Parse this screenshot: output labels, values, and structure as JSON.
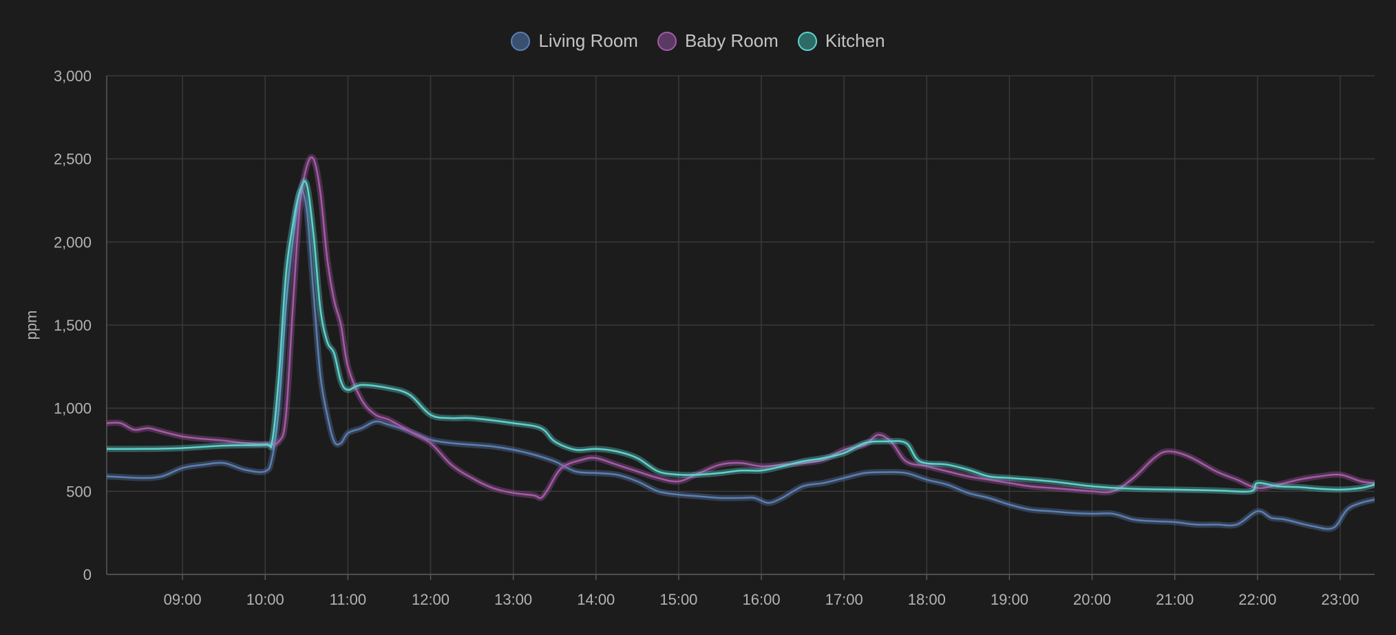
{
  "chart_data": {
    "type": "line",
    "title": "",
    "xlabel": "",
    "ylabel": "ppm",
    "xlim": [
      "08:05",
      "23:25"
    ],
    "ylim": [
      0,
      3000
    ],
    "y_ticks": [
      0,
      500,
      1000,
      1500,
      2000,
      2500,
      3000
    ],
    "y_tick_labels": [
      "0",
      "500",
      "1,000",
      "1,500",
      "2,000",
      "2,500",
      "3,000"
    ],
    "x_ticks": [
      "09:00",
      "10:00",
      "11:00",
      "12:00",
      "13:00",
      "14:00",
      "15:00",
      "16:00",
      "17:00",
      "18:00",
      "19:00",
      "20:00",
      "21:00",
      "22:00",
      "23:00"
    ],
    "grid": true,
    "legend_position": "top-center",
    "series": [
      {
        "name": "Living Room",
        "color": "#5b7fb3",
        "fill": "#3a5070",
        "points": [
          [
            "08:05",
            590
          ],
          [
            "08:30",
            580
          ],
          [
            "08:45",
            590
          ],
          [
            "09:00",
            640
          ],
          [
            "09:15",
            660
          ],
          [
            "09:30",
            670
          ],
          [
            "09:45",
            630
          ],
          [
            "10:00",
            620
          ],
          [
            "10:05",
            700
          ],
          [
            "10:10",
            1000
          ],
          [
            "10:15",
            1600
          ],
          [
            "10:20",
            2000
          ],
          [
            "10:25",
            2300
          ],
          [
            "10:30",
            2200
          ],
          [
            "10:35",
            1700
          ],
          [
            "10:40",
            1200
          ],
          [
            "10:45",
            960
          ],
          [
            "10:50",
            800
          ],
          [
            "10:55",
            790
          ],
          [
            "11:00",
            850
          ],
          [
            "11:10",
            880
          ],
          [
            "11:20",
            920
          ],
          [
            "11:30",
            900
          ],
          [
            "11:45",
            860
          ],
          [
            "12:00",
            810
          ],
          [
            "12:15",
            790
          ],
          [
            "12:30",
            780
          ],
          [
            "12:45",
            770
          ],
          [
            "13:00",
            750
          ],
          [
            "13:15",
            720
          ],
          [
            "13:30",
            680
          ],
          [
            "13:45",
            620
          ],
          [
            "14:00",
            610
          ],
          [
            "14:15",
            600
          ],
          [
            "14:30",
            560
          ],
          [
            "14:45",
            500
          ],
          [
            "15:00",
            480
          ],
          [
            "15:15",
            470
          ],
          [
            "15:30",
            460
          ],
          [
            "15:45",
            460
          ],
          [
            "15:55",
            460
          ],
          [
            "16:05",
            430
          ],
          [
            "16:15",
            460
          ],
          [
            "16:30",
            530
          ],
          [
            "16:45",
            550
          ],
          [
            "17:00",
            580
          ],
          [
            "17:15",
            610
          ],
          [
            "17:30",
            615
          ],
          [
            "17:45",
            610
          ],
          [
            "18:00",
            570
          ],
          [
            "18:15",
            540
          ],
          [
            "18:30",
            490
          ],
          [
            "18:45",
            460
          ],
          [
            "19:00",
            420
          ],
          [
            "19:15",
            390
          ],
          [
            "19:30",
            380
          ],
          [
            "19:45",
            370
          ],
          [
            "20:00",
            365
          ],
          [
            "20:15",
            365
          ],
          [
            "20:30",
            330
          ],
          [
            "20:45",
            320
          ],
          [
            "21:00",
            315
          ],
          [
            "21:15",
            300
          ],
          [
            "21:30",
            300
          ],
          [
            "21:45",
            300
          ],
          [
            "22:00",
            380
          ],
          [
            "22:10",
            340
          ],
          [
            "22:20",
            330
          ],
          [
            "22:40",
            290
          ],
          [
            "22:55",
            280
          ],
          [
            "23:05",
            390
          ],
          [
            "23:15",
            430
          ],
          [
            "23:25",
            450
          ]
        ]
      },
      {
        "name": "Baby Room",
        "color": "#a65aa8",
        "fill": "#5a3a62",
        "points": [
          [
            "08:05",
            910
          ],
          [
            "08:15",
            910
          ],
          [
            "08:25",
            870
          ],
          [
            "08:35",
            880
          ],
          [
            "08:45",
            860
          ],
          [
            "09:00",
            830
          ],
          [
            "09:15",
            815
          ],
          [
            "09:30",
            805
          ],
          [
            "09:45",
            790
          ],
          [
            "10:00",
            785
          ],
          [
            "10:10",
            800
          ],
          [
            "10:15",
            950
          ],
          [
            "10:20",
            1600
          ],
          [
            "10:25",
            2200
          ],
          [
            "10:30",
            2450
          ],
          [
            "10:35",
            2500
          ],
          [
            "10:40",
            2300
          ],
          [
            "10:45",
            1900
          ],
          [
            "10:50",
            1650
          ],
          [
            "10:55",
            1500
          ],
          [
            "11:00",
            1250
          ],
          [
            "11:10",
            1050
          ],
          [
            "11:20",
            960
          ],
          [
            "11:30",
            930
          ],
          [
            "11:45",
            860
          ],
          [
            "12:00",
            790
          ],
          [
            "12:15",
            660
          ],
          [
            "12:30",
            580
          ],
          [
            "12:45",
            520
          ],
          [
            "13:00",
            490
          ],
          [
            "13:15",
            475
          ],
          [
            "13:20",
            460
          ],
          [
            "13:25",
            510
          ],
          [
            "13:35",
            640
          ],
          [
            "13:50",
            690
          ],
          [
            "14:00",
            700
          ],
          [
            "14:15",
            660
          ],
          [
            "14:30",
            620
          ],
          [
            "14:45",
            580
          ],
          [
            "15:00",
            560
          ],
          [
            "15:15",
            610
          ],
          [
            "15:30",
            660
          ],
          [
            "15:45",
            670
          ],
          [
            "16:00",
            650
          ],
          [
            "16:15",
            660
          ],
          [
            "16:30",
            670
          ],
          [
            "16:45",
            690
          ],
          [
            "17:00",
            750
          ],
          [
            "17:15",
            780
          ],
          [
            "17:25",
            840
          ],
          [
            "17:35",
            790
          ],
          [
            "17:45",
            680
          ],
          [
            "18:00",
            650
          ],
          [
            "18:15",
            620
          ],
          [
            "18:30",
            590
          ],
          [
            "18:45",
            570
          ],
          [
            "19:00",
            550
          ],
          [
            "19:15",
            530
          ],
          [
            "19:30",
            520
          ],
          [
            "19:45",
            510
          ],
          [
            "20:00",
            500
          ],
          [
            "20:15",
            500
          ],
          [
            "20:30",
            580
          ],
          [
            "20:45",
            700
          ],
          [
            "20:55",
            740
          ],
          [
            "21:10",
            710
          ],
          [
            "21:30",
            620
          ],
          [
            "21:45",
            570
          ],
          [
            "22:00",
            520
          ],
          [
            "22:15",
            540
          ],
          [
            "22:30",
            570
          ],
          [
            "22:45",
            590
          ],
          [
            "23:00",
            600
          ],
          [
            "23:15",
            560
          ],
          [
            "23:25",
            550
          ]
        ]
      },
      {
        "name": "Kitchen",
        "color": "#5fd3cf",
        "fill": "#2e6b66",
        "points": [
          [
            "08:05",
            755
          ],
          [
            "08:30",
            755
          ],
          [
            "09:00",
            760
          ],
          [
            "09:30",
            775
          ],
          [
            "10:00",
            780
          ],
          [
            "10:05",
            800
          ],
          [
            "10:10",
            1200
          ],
          [
            "10:15",
            1800
          ],
          [
            "10:20",
            2100
          ],
          [
            "10:25",
            2300
          ],
          [
            "10:30",
            2350
          ],
          [
            "10:35",
            2050
          ],
          [
            "10:40",
            1600
          ],
          [
            "10:45",
            1400
          ],
          [
            "10:50",
            1330
          ],
          [
            "10:55",
            1160
          ],
          [
            "11:00",
            1110
          ],
          [
            "11:10",
            1140
          ],
          [
            "11:30",
            1120
          ],
          [
            "11:45",
            1080
          ],
          [
            "12:00",
            960
          ],
          [
            "12:15",
            940
          ],
          [
            "12:30",
            940
          ],
          [
            "13:00",
            910
          ],
          [
            "13:20",
            880
          ],
          [
            "13:30",
            800
          ],
          [
            "13:45",
            750
          ],
          [
            "14:00",
            755
          ],
          [
            "14:15",
            740
          ],
          [
            "14:30",
            700
          ],
          [
            "14:45",
            620
          ],
          [
            "15:00",
            600
          ],
          [
            "15:15",
            600
          ],
          [
            "15:30",
            610
          ],
          [
            "15:45",
            625
          ],
          [
            "16:00",
            625
          ],
          [
            "16:15",
            650
          ],
          [
            "16:30",
            680
          ],
          [
            "16:45",
            700
          ],
          [
            "17:00",
            730
          ],
          [
            "17:15",
            790
          ],
          [
            "17:30",
            800
          ],
          [
            "17:45",
            790
          ],
          [
            "17:55",
            680
          ],
          [
            "18:15",
            660
          ],
          [
            "18:30",
            630
          ],
          [
            "18:45",
            590
          ],
          [
            "19:00",
            580
          ],
          [
            "19:30",
            560
          ],
          [
            "20:00",
            530
          ],
          [
            "20:30",
            515
          ],
          [
            "21:00",
            510
          ],
          [
            "21:30",
            505
          ],
          [
            "21:55",
            500
          ],
          [
            "22:00",
            550
          ],
          [
            "22:15",
            530
          ],
          [
            "22:30",
            525
          ],
          [
            "22:45",
            515
          ],
          [
            "23:00",
            510
          ],
          [
            "23:15",
            520
          ],
          [
            "23:25",
            540
          ]
        ]
      }
    ]
  }
}
